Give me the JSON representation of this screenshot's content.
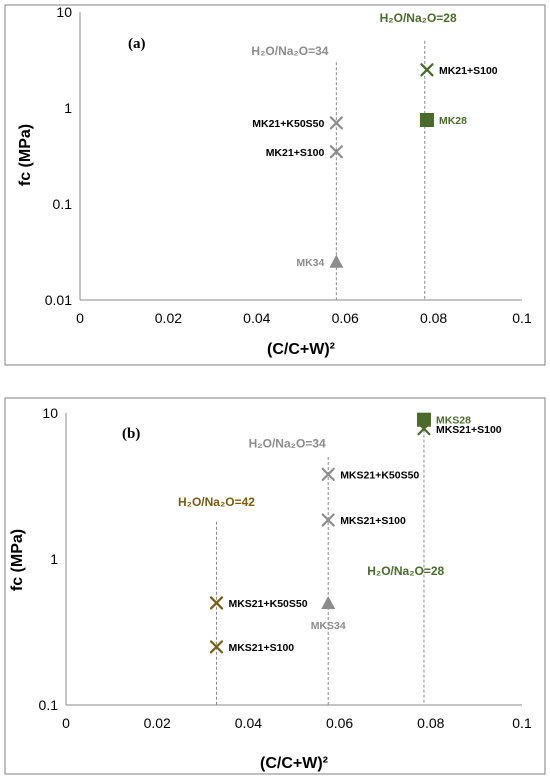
{
  "colors": {
    "gray": "#8c8c8c",
    "green": "#4a6b2a",
    "olive": "#7a5c0e",
    "black": "#000000",
    "guide": "#8a8a8a",
    "frame": "#7f7f7f"
  },
  "chart_data": [
    {
      "type": "scatter",
      "panel_label": "(a)",
      "xlabel": "(C/C+W)²",
      "ylabel": "fc (MPa)",
      "xlim": [
        0,
        0.1
      ],
      "ylim": [
        0.01,
        10
      ],
      "ylog": true,
      "x_ticks": [
        "0",
        "0.02",
        "0.04",
        "0.06",
        "0.08",
        "0.1"
      ],
      "y_ticks": [
        "0.01",
        "0.1",
        "1",
        "10"
      ],
      "guides": [
        {
          "x": 0.058,
          "y_top": 3.0,
          "label": "H₂O/Na₂O=34",
          "label_x": 0.0475,
          "label_y": 3.55,
          "color": "gray",
          "anchor": "middle"
        },
        {
          "x": 0.078,
          "y_top": 5.0,
          "label": "H₂O/Na₂O=28",
          "label_x": 0.0765,
          "label_y": 7.9,
          "color": "green",
          "anchor": "middle"
        }
      ],
      "points": [
        {
          "x": 0.058,
          "y": 0.7,
          "marker": "x",
          "color": "gray",
          "label": "MK21+K50S50",
          "label_color": "black",
          "side": "left"
        },
        {
          "x": 0.058,
          "y": 0.35,
          "marker": "x",
          "color": "gray",
          "label": "MK21+S100",
          "label_color": "black",
          "side": "left"
        },
        {
          "x": 0.058,
          "y": 0.025,
          "marker": "triangle",
          "color": "gray",
          "label": "MK34",
          "label_color": "gray",
          "side": "left"
        },
        {
          "x": 0.0785,
          "y": 2.5,
          "marker": "x",
          "color": "green",
          "label": "MK21+S100",
          "label_color": "black",
          "side": "right"
        },
        {
          "x": 0.0785,
          "y": 0.75,
          "marker": "square",
          "color": "green",
          "label": "MK28",
          "label_color": "green",
          "side": "right"
        }
      ]
    },
    {
      "type": "scatter",
      "panel_label": "(b)",
      "xlabel": "(C/C+W)²",
      "ylabel": "fc (MPa)",
      "xlim": [
        0,
        0.1
      ],
      "ylim": [
        0.1,
        10
      ],
      "ylog": true,
      "x_ticks": [
        "0",
        "0.02",
        "0.04",
        "0.06",
        "0.08",
        "0.1"
      ],
      "y_ticks": [
        "0.1",
        "1",
        "10"
      ],
      "guides": [
        {
          "x": 0.033,
          "y_top": 1.8,
          "label": "H₂O/Na₂O=42",
          "label_x": 0.033,
          "label_y": 2.3,
          "color": "olive",
          "anchor": "middle"
        },
        {
          "x": 0.0575,
          "y_top": 5.0,
          "label": "H₂O/Na₂O=34",
          "label_x": 0.0485,
          "label_y": 5.8,
          "color": "gray",
          "anchor": "middle"
        },
        {
          "x": 0.0785,
          "y_top": 9.0,
          "label": "H₂O/Na₂O=28",
          "label_x": 0.0745,
          "label_y": 0.78,
          "color": "green",
          "anchor": "middle"
        }
      ],
      "points": [
        {
          "x": 0.033,
          "y": 0.5,
          "marker": "x",
          "color": "olive",
          "label": "MKS21+K50S50",
          "label_color": "black",
          "side": "right"
        },
        {
          "x": 0.033,
          "y": 0.25,
          "marker": "x",
          "color": "olive",
          "label": "MKS21+S100",
          "label_color": "black",
          "side": "right"
        },
        {
          "x": 0.0575,
          "y": 3.8,
          "marker": "x",
          "color": "gray",
          "label": "MKS21+K50S50",
          "label_color": "black",
          "side": "right"
        },
        {
          "x": 0.0575,
          "y": 1.85,
          "marker": "x",
          "color": "gray",
          "label": "MKS21+S100",
          "label_color": "black",
          "side": "right"
        },
        {
          "x": 0.0575,
          "y": 0.5,
          "marker": "triangle",
          "color": "gray",
          "label": "MKS34",
          "label_color": "gray",
          "side": "below"
        },
        {
          "x": 0.0785,
          "y": 9.0,
          "marker": "square",
          "color": "green",
          "label": "MKS28",
          "label_color": "green",
          "side": "right"
        },
        {
          "x": 0.0785,
          "y": 7.8,
          "marker": "x",
          "color": "green",
          "label": "MKS21+S100",
          "label_color": "black",
          "side": "right"
        }
      ]
    }
  ]
}
